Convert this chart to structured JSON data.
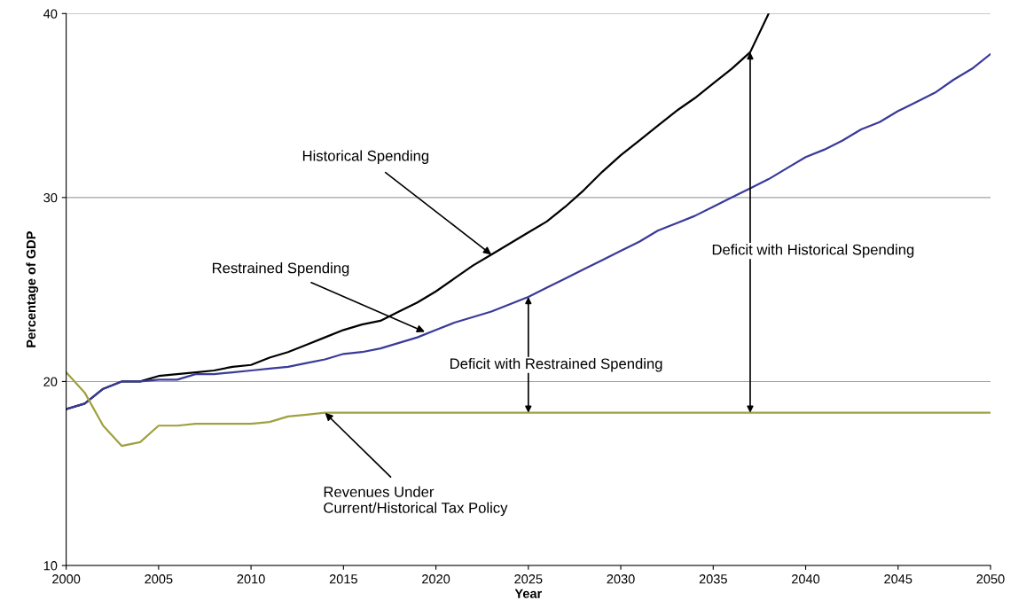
{
  "chart_data": {
    "type": "line",
    "xlabel": "Year",
    "ylabel": "Percentage of GDP",
    "xlim": [
      2000,
      2050
    ],
    "xticks": [
      2000,
      2005,
      2010,
      2015,
      2020,
      2025,
      2030,
      2035,
      2040,
      2045,
      2050
    ],
    "ylim": [
      10,
      40
    ],
    "yticks": [
      10,
      20,
      30,
      40
    ],
    "grid": "y",
    "marker": "none",
    "line_style": "solid",
    "series": [
      {
        "color": "#000000",
        "x": [
          2000,
          2001,
          2002,
          2003,
          2004,
          2005,
          2006,
          2007,
          2008,
          2009,
          2010,
          2011,
          2012,
          2013,
          2014,
          2015,
          2016,
          2017,
          2018,
          2019,
          2020,
          2021,
          2022,
          2023,
          2024,
          2025,
          2026,
          2027,
          2028,
          2029,
          2030,
          2031,
          2032,
          2033,
          2034,
          2035,
          2036,
          2037,
          2038
        ],
        "values": [
          18.5,
          18.8,
          19.6,
          20.0,
          20.0,
          20.3,
          20.4,
          20.5,
          20.6,
          20.8,
          20.9,
          21.3,
          21.6,
          22.0,
          22.4,
          22.8,
          23.1,
          23.3,
          23.8,
          24.3,
          24.9,
          25.6,
          26.3,
          26.9,
          27.5,
          28.1,
          28.7,
          29.5,
          30.4,
          31.4,
          32.3,
          33.1,
          33.9,
          34.7,
          35.4,
          36.2,
          37.0,
          37.9,
          40.0
        ]
      },
      {
        "color": "#3a3a9a",
        "x": [
          2000,
          2001,
          2002,
          2003,
          2004,
          2005,
          2006,
          2007,
          2008,
          2009,
          2010,
          2011,
          2012,
          2013,
          2014,
          2015,
          2016,
          2017,
          2018,
          2019,
          2020,
          2021,
          2022,
          2023,
          2024,
          2025,
          2026,
          2027,
          2028,
          2029,
          2030,
          2031,
          2032,
          2033,
          2034,
          2035,
          2036,
          2037,
          2038,
          2039,
          2040,
          2041,
          2042,
          2043,
          2044,
          2045,
          2046,
          2047,
          2048,
          2049,
          2050
        ],
        "values": [
          18.5,
          18.8,
          19.6,
          20.0,
          20.0,
          20.1,
          20.1,
          20.4,
          20.4,
          20.5,
          20.6,
          20.7,
          20.8,
          21.0,
          21.2,
          21.5,
          21.6,
          21.8,
          22.1,
          22.4,
          22.8,
          23.2,
          23.5,
          23.8,
          24.2,
          24.6,
          25.1,
          25.6,
          26.1,
          26.6,
          27.1,
          27.6,
          28.2,
          28.6,
          29.0,
          29.5,
          30.0,
          30.5,
          31.0,
          31.6,
          32.2,
          32.6,
          33.1,
          33.7,
          34.1,
          34.7,
          35.2,
          35.7,
          36.4,
          37.0,
          37.8
        ]
      },
      {
        "color": "#a0a040",
        "x": [
          2000,
          2001,
          2002,
          2003,
          2004,
          2005,
          2006,
          2007,
          2008,
          2009,
          2010,
          2011,
          2012,
          2013,
          2014,
          2015,
          2020,
          2025,
          2030,
          2035,
          2040,
          2045,
          2050
        ],
        "values": [
          20.5,
          19.4,
          17.6,
          16.5,
          16.7,
          17.6,
          17.6,
          17.7,
          17.7,
          17.7,
          17.7,
          17.8,
          18.1,
          18.2,
          18.3,
          18.3,
          18.3,
          18.3,
          18.3,
          18.3,
          18.3,
          18.3,
          18.3
        ]
      }
    ],
    "annotations": [
      {
        "text": "Historical Spending",
        "x": 2023,
        "y": 26.9
      },
      {
        "text": "Restrained Spending",
        "x": 2019.4,
        "y": 22.7
      },
      {
        "text": "Revenues Under\nCurrent/Historical Tax Policy",
        "x": 2014,
        "y": 18.3
      },
      "Deficit with Restrained Spending",
      "Deficit with Historical Spending"
    ]
  }
}
